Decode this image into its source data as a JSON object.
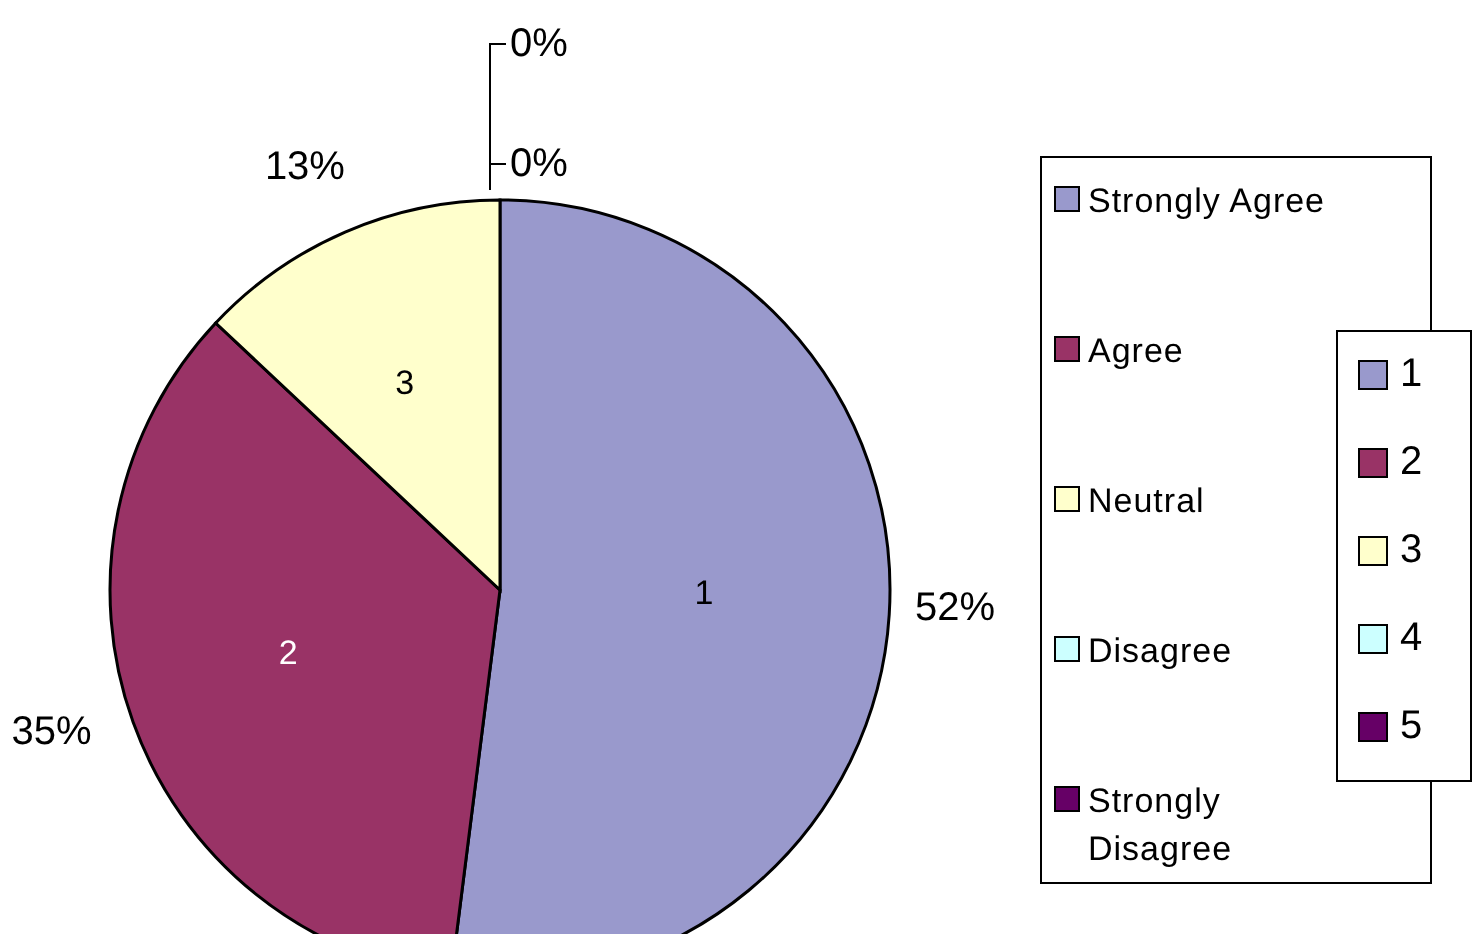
{
  "chart_data": {
    "type": "pie",
    "categories": [
      "Strongly Agree",
      "Agree",
      "Neutral",
      "Disagree",
      "Strongly Disagree"
    ],
    "values": [
      52,
      35,
      13,
      0,
      0
    ],
    "value_labels": [
      "52%",
      "35%",
      "13%",
      "0%",
      "0%"
    ],
    "colors": [
      "#9999cc",
      "#993366",
      "#ffffcc",
      "#ccffff",
      "#660066"
    ],
    "annotations": [
      "1",
      "2",
      "3",
      "4",
      "5"
    ],
    "legend": "right"
  }
}
